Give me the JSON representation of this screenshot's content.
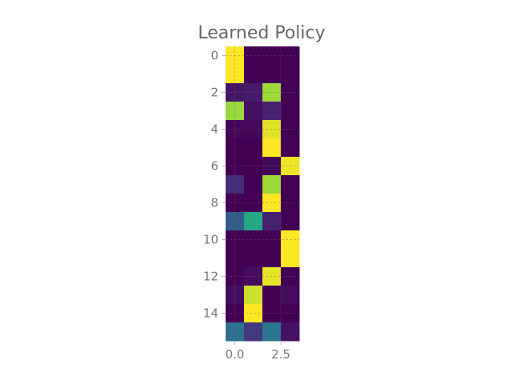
{
  "chart_data": {
    "type": "heatmap",
    "title": "Learned Policy",
    "xlabel": "",
    "ylabel": "",
    "x_ticks": [
      "0.0",
      "2.5"
    ],
    "y_ticks": [
      "0",
      "2",
      "4",
      "6",
      "8",
      "10",
      "12",
      "14"
    ],
    "colormap": "viridis",
    "grid": true,
    "n_rows": 16,
    "n_cols": 4,
    "values": [
      [
        1.0,
        0.0,
        0.0,
        0.0
      ],
      [
        1.0,
        0.0,
        0.0,
        0.0
      ],
      [
        0.06,
        0.08,
        0.86,
        0.0
      ],
      [
        0.85,
        0.04,
        0.1,
        0.0
      ],
      [
        0.02,
        0.02,
        0.96,
        0.0
      ],
      [
        0.0,
        0.0,
        1.0,
        0.0
      ],
      [
        0.0,
        0.0,
        0.02,
        0.98
      ],
      [
        0.13,
        0.0,
        0.86,
        0.0
      ],
      [
        0.0,
        0.0,
        1.0,
        0.0
      ],
      [
        0.3,
        0.6,
        0.1,
        0.0
      ],
      [
        0.0,
        0.0,
        0.0,
        1.0
      ],
      [
        0.0,
        0.0,
        0.0,
        1.0
      ],
      [
        0.0,
        0.03,
        0.97,
        0.0
      ],
      [
        0.04,
        0.93,
        0.0,
        0.03
      ],
      [
        0.0,
        1.0,
        0.0,
        0.0
      ],
      [
        0.38,
        0.17,
        0.4,
        0.05
      ]
    ]
  }
}
